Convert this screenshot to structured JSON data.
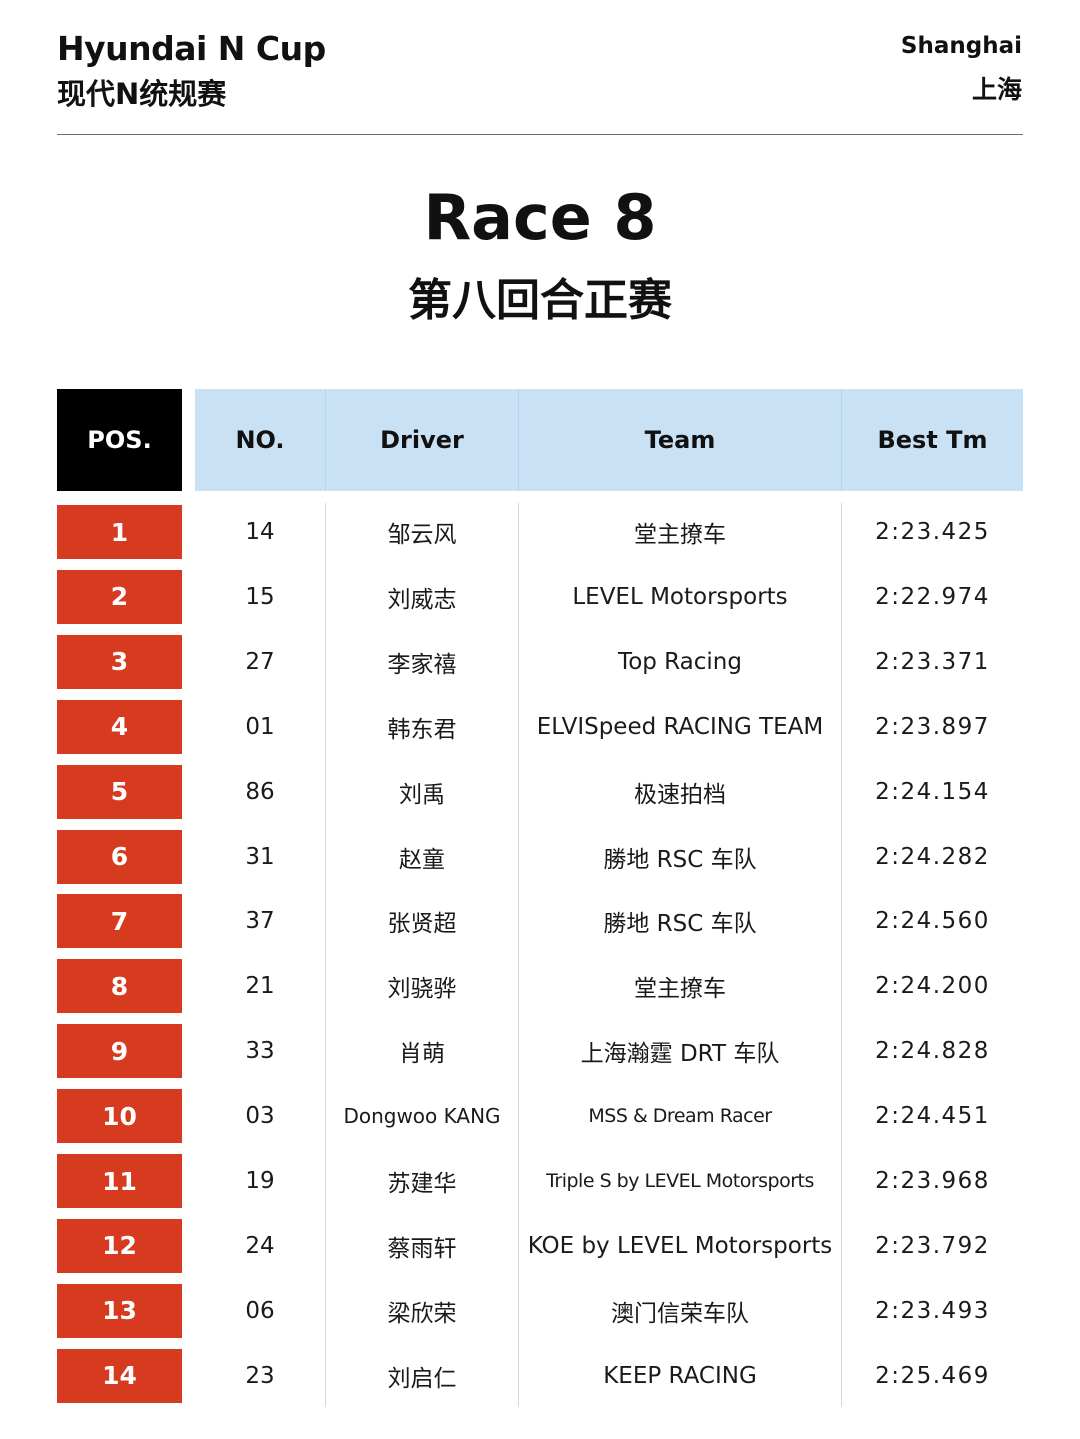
{
  "header": {
    "series_en": "Hyundai N Cup",
    "series_cn": "现代N统规赛",
    "location_en": "Shanghai",
    "location_cn": "上海"
  },
  "title": {
    "main": "Race 8",
    "sub": "第八回合正赛"
  },
  "table": {
    "columns": [
      "POS.",
      "NO.",
      "Driver",
      "Team",
      "Best Tm"
    ],
    "rows": [
      {
        "pos": "1",
        "no": "14",
        "driver": "邹云风",
        "team": "堂主撩车",
        "best": "2:23.425"
      },
      {
        "pos": "2",
        "no": "15",
        "driver": "刘威志",
        "team": "LEVEL Motorsports",
        "best": "2:22.974"
      },
      {
        "pos": "3",
        "no": "27",
        "driver": "李家禧",
        "team": "Top Racing",
        "best": "2:23.371"
      },
      {
        "pos": "4",
        "no": "01",
        "driver": "韩东君",
        "team": "ELVISpeed RACING TEAM",
        "best": "2:23.897"
      },
      {
        "pos": "5",
        "no": "86",
        "driver": "刘禹",
        "team": "极速拍档",
        "best": "2:24.154"
      },
      {
        "pos": "6",
        "no": "31",
        "driver": "赵童",
        "team": "勝地 RSC 车队",
        "best": "2:24.282"
      },
      {
        "pos": "7",
        "no": "37",
        "driver": "张贤超",
        "team": "勝地 RSC 车队",
        "best": "2:24.560"
      },
      {
        "pos": "8",
        "no": "21",
        "driver": "刘骁骅",
        "team": "堂主撩车",
        "best": "2:24.200"
      },
      {
        "pos": "9",
        "no": "33",
        "driver": "肖萌",
        "team": "上海瀚霆 DRT 车队",
        "best": "2:24.828"
      },
      {
        "pos": "10",
        "no": "03",
        "driver": "Dongwoo KANG",
        "team": "MSS & Dream Racer",
        "best": "2:24.451"
      },
      {
        "pos": "11",
        "no": "19",
        "driver": "苏建华",
        "team": "Triple S by LEVEL Motorsports",
        "best": "2:23.968"
      },
      {
        "pos": "12",
        "no": "24",
        "driver": "蔡雨轩",
        "team": "KOE by LEVEL Motorsports",
        "best": "2:23.792"
      },
      {
        "pos": "13",
        "no": "06",
        "driver": "梁欣荣",
        "team": "澳门信荣车队",
        "best": "2:23.493"
      },
      {
        "pos": "14",
        "no": "23",
        "driver": "刘启仁",
        "team": "KEEP RACING",
        "best": "2:25.469"
      }
    ]
  },
  "colors": {
    "pos_header_bg": "#000000",
    "pos_cell_bg": "#d63a1f",
    "header_band_bg": "#c8e1f5",
    "text": "#111111"
  }
}
